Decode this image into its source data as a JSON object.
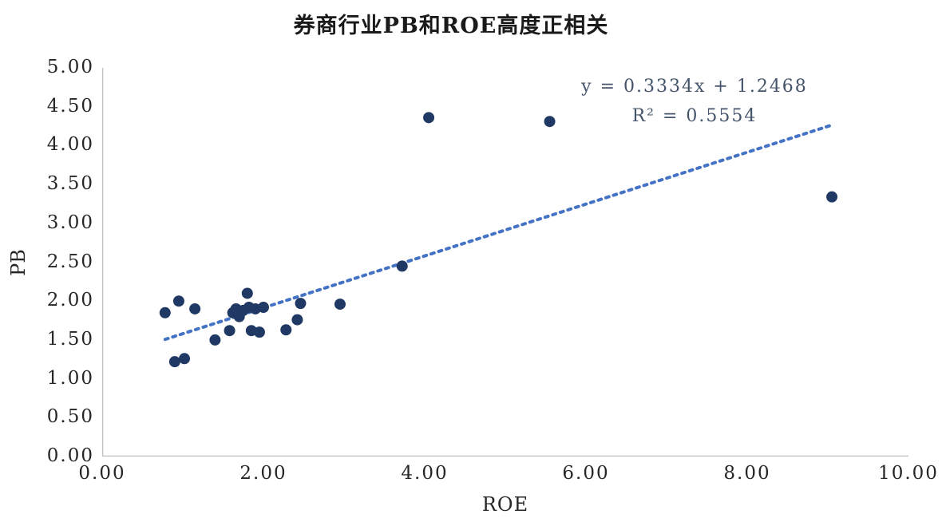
{
  "chart_data": {
    "type": "scatter",
    "title": "券商行业PB和ROE高度正相关",
    "xlabel": "ROE",
    "ylabel": "PB",
    "xlim": [
      0,
      10
    ],
    "ylim": [
      0,
      5
    ],
    "x_ticks": [
      "0.00",
      "2.00",
      "4.00",
      "6.00",
      "8.00",
      "10.00"
    ],
    "y_ticks": [
      "0.00",
      "0.50",
      "1.00",
      "1.50",
      "2.00",
      "2.50",
      "3.00",
      "3.50",
      "4.00",
      "4.50",
      "5.00"
    ],
    "points": [
      [
        0.78,
        1.85
      ],
      [
        0.9,
        1.22
      ],
      [
        0.95,
        2.0
      ],
      [
        1.02,
        1.26
      ],
      [
        1.15,
        1.9
      ],
      [
        1.4,
        1.5
      ],
      [
        1.58,
        1.62
      ],
      [
        1.62,
        1.85
      ],
      [
        1.66,
        1.9
      ],
      [
        1.7,
        1.8
      ],
      [
        1.75,
        1.88
      ],
      [
        1.8,
        2.1
      ],
      [
        1.82,
        1.92
      ],
      [
        1.85,
        1.62
      ],
      [
        1.9,
        1.9
      ],
      [
        1.95,
        1.6
      ],
      [
        2.0,
        1.92
      ],
      [
        2.28,
        1.63
      ],
      [
        2.42,
        1.76
      ],
      [
        2.46,
        1.97
      ],
      [
        2.95,
        1.96
      ],
      [
        3.72,
        2.45
      ],
      [
        4.05,
        4.36
      ],
      [
        5.55,
        4.31
      ],
      [
        9.05,
        3.34
      ]
    ],
    "trendline": {
      "slope": 0.3334,
      "intercept": 1.2468,
      "x_start": 0.78,
      "x_end": 9.05,
      "equation": "y = 0.3334x + 1.2468",
      "r_squared": "R² = 0.5554"
    },
    "legend": "none",
    "grid": false,
    "colors": {
      "point": "#1F3864",
      "trendline": "#4472C4",
      "axis": "#BFBFBF",
      "annotation": "#44546A",
      "text": "#262626"
    }
  }
}
